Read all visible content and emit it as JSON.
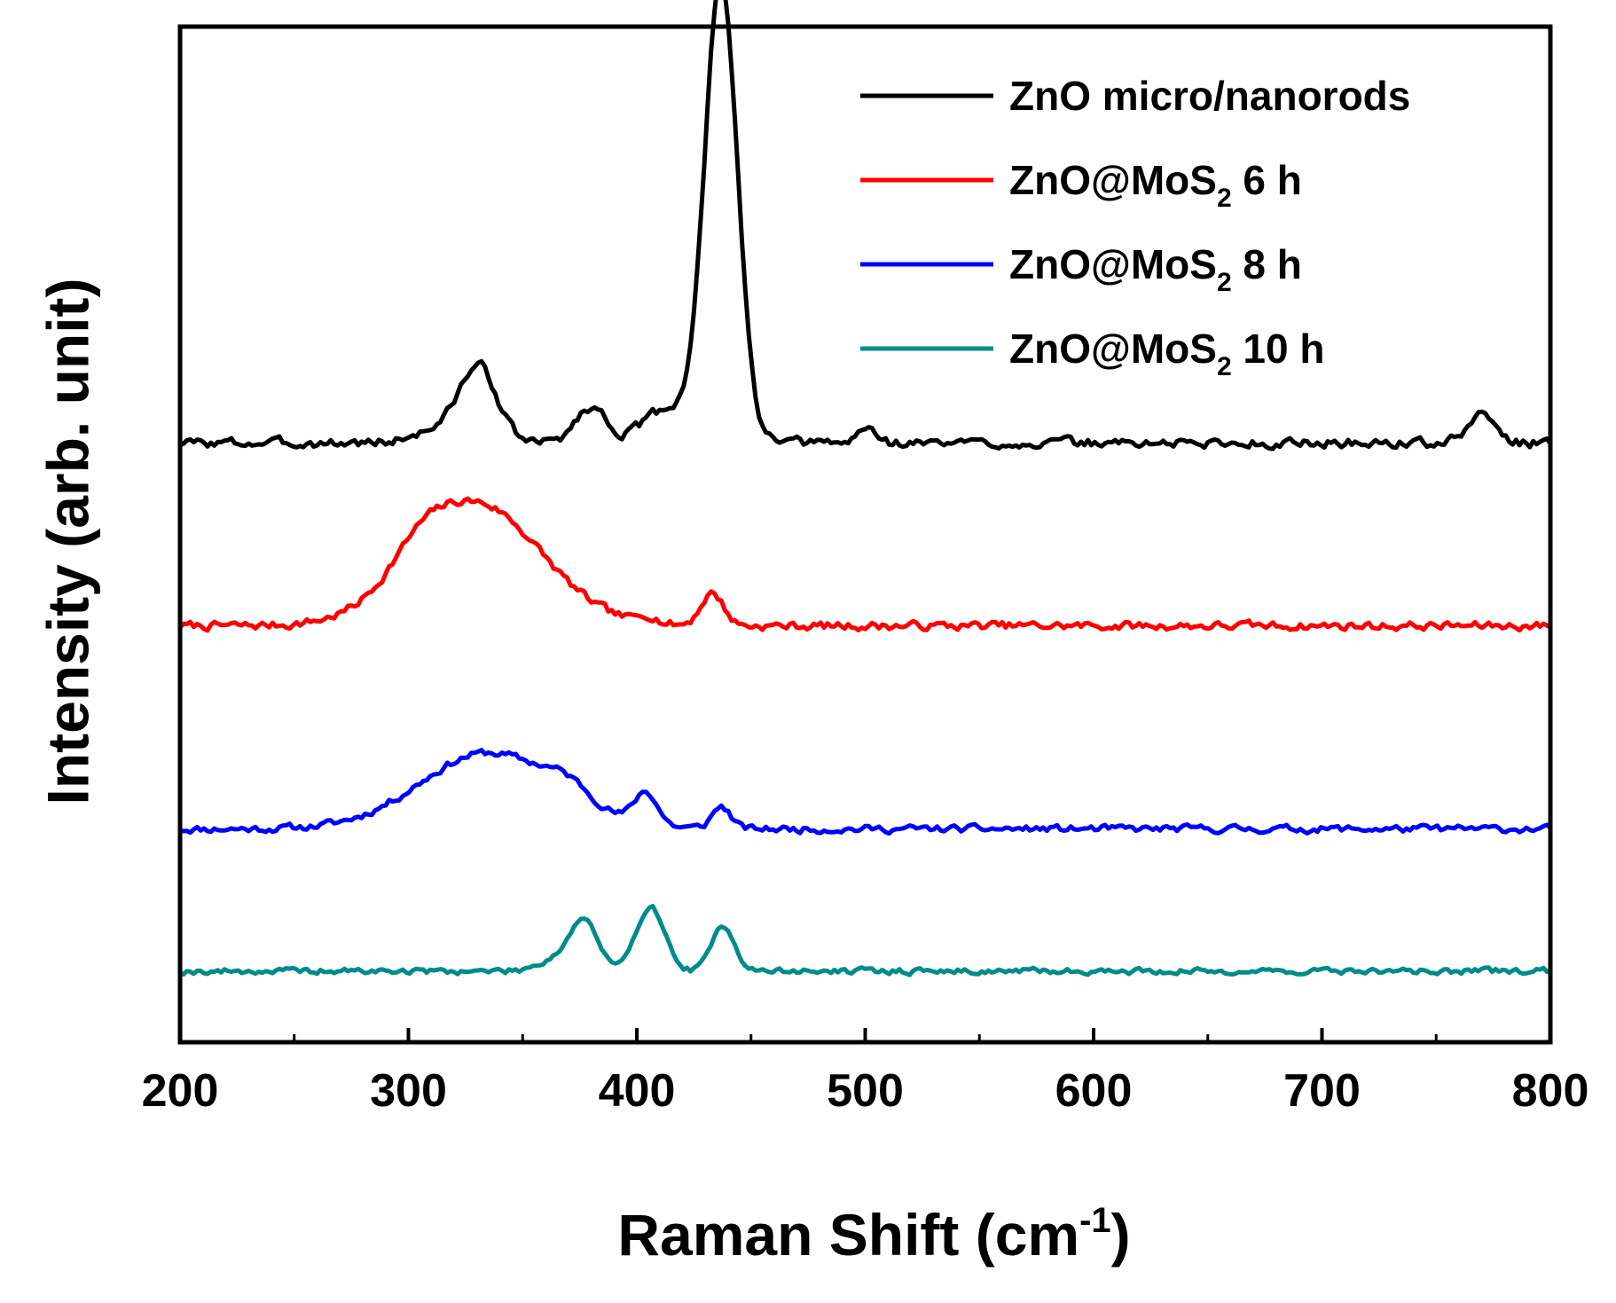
{
  "chart_data": {
    "type": "line",
    "xlabel": "Raman Shift (cm",
    "xlabel_sup": "-1",
    "xlabel_close": ")",
    "ylabel": "Intensity (arb. unit)",
    "xlim": [
      200,
      800
    ],
    "ylim": [
      0,
      100
    ],
    "xticks": [
      "200",
      "300",
      "400",
      "500",
      "600",
      "700",
      "800"
    ],
    "y_ticks_shown": false,
    "legend_position": "top-right",
    "series": [
      {
        "name": "ZnO micro/nanorods",
        "legend_main": "ZnO micro/nanorods",
        "legend_sub": "",
        "legend_tail": "",
        "color": "#000000",
        "baseline": 59,
        "noise": 0.8,
        "seed": 3,
        "peaks": [
          [
            331,
            8,
            7.0
          ],
          [
            316,
            12,
            1.5
          ],
          [
            380,
            7,
            3.5
          ],
          [
            410,
            9,
            2.5
          ],
          [
            437,
            7,
            45
          ],
          [
            425,
            10,
            2.0
          ],
          [
            501,
            4,
            1.5
          ],
          [
            770,
            6,
            2.8
          ]
        ]
      },
      {
        "name": "ZnO@MoS2 6 h",
        "legend_main": "ZnO@MoS",
        "legend_sub": "2",
        "legend_tail": " 6 h",
        "color": "#ff0000",
        "baseline": 41,
        "noise": 0.7,
        "seed": 7,
        "peaks": [
          [
            330,
            28,
            12.0
          ],
          [
            305,
            12,
            2.0
          ],
          [
            433,
            5,
            3.2
          ],
          [
            405,
            4,
            0.8
          ]
        ]
      },
      {
        "name": "ZnO@MoS2 8 h",
        "legend_main": "ZnO@MoS",
        "legend_sub": "2",
        "legend_tail": " 8 h",
        "color": "#0000ff",
        "baseline": 21,
        "noise": 0.6,
        "seed": 11,
        "peaks": [
          [
            335,
            30,
            7.5
          ],
          [
            370,
            10,
            1.5
          ],
          [
            404,
            5,
            3.2
          ],
          [
            437,
            4,
            2.2
          ]
        ]
      },
      {
        "name": "ZnO@MoS2 10 h",
        "legend_main": "ZnO@MoS",
        "legend_sub": "2",
        "legend_tail": " 10 h",
        "color": "#008b8b",
        "baseline": 7,
        "noise": 0.5,
        "seed": 19,
        "peaks": [
          [
            377,
            6,
            4.8
          ],
          [
            406,
            6,
            6.5
          ],
          [
            438,
            5,
            4.5
          ],
          [
            365,
            8,
            1.2
          ]
        ]
      }
    ]
  }
}
